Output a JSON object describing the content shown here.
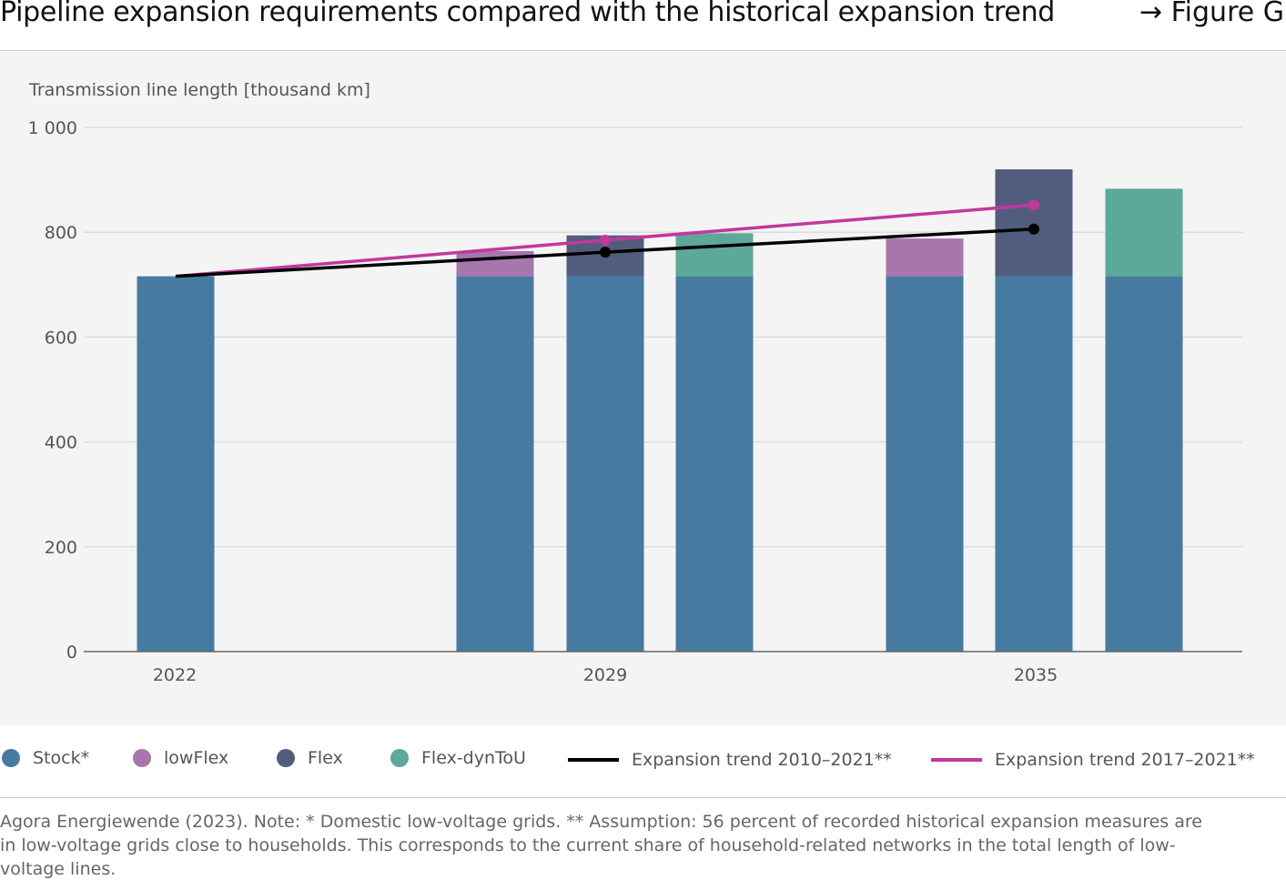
{
  "header": {
    "title": "Pipeline expansion requirements compared with the historical expansion trend",
    "figure_ref": "→ Figure G"
  },
  "chart_data": {
    "type": "bar",
    "stacked": true,
    "ylabel": "Transmission line length [thousand km]",
    "ylim": [
      0,
      1000
    ],
    "yticks": [
      0,
      200,
      400,
      600,
      800,
      1000
    ],
    "ytick_labels": [
      "0",
      "200",
      "400",
      "600",
      "800",
      "1 000"
    ],
    "xgroups": [
      "2022",
      "2029",
      "2035"
    ],
    "bars": [
      {
        "group": "2022",
        "segments": [
          {
            "series": "Stock*",
            "value": 716
          }
        ]
      },
      {
        "group": "2029",
        "segments": [
          {
            "series": "Stock*",
            "value": 716
          },
          {
            "series": "lowFlex",
            "value": 48
          }
        ]
      },
      {
        "group": "2029",
        "segments": [
          {
            "series": "Stock*",
            "value": 716
          },
          {
            "series": "Flex",
            "value": 78
          }
        ]
      },
      {
        "group": "2029",
        "segments": [
          {
            "series": "Stock*",
            "value": 716
          },
          {
            "series": "Flex-dynToU",
            "value": 82
          }
        ]
      },
      {
        "group": "2035",
        "segments": [
          {
            "series": "Stock*",
            "value": 716
          },
          {
            "series": "lowFlex",
            "value": 72
          }
        ]
      },
      {
        "group": "2035",
        "segments": [
          {
            "series": "Stock*",
            "value": 716
          },
          {
            "series": "Flex",
            "value": 204
          }
        ]
      },
      {
        "group": "2035",
        "segments": [
          {
            "series": "Stock*",
            "value": 716
          },
          {
            "series": "Flex-dynToU",
            "value": 167
          }
        ]
      }
    ],
    "lines": [
      {
        "name": "Expansion trend 2010–2021**",
        "color": "#000000",
        "points": [
          {
            "x": "2022",
            "y": 716
          },
          {
            "x": "2029",
            "y": 762
          },
          {
            "x": "2035",
            "y": 806
          }
        ]
      },
      {
        "name": "Expansion trend 2017–2021**",
        "color": "#c0399d",
        "points": [
          {
            "x": "2022",
            "y": 716
          },
          {
            "x": "2029",
            "y": 785
          },
          {
            "x": "2035",
            "y": 852
          }
        ]
      }
    ],
    "colors": {
      "Stock*": "#467aa1",
      "lowFlex": "#a676ad",
      "Flex": "#525d7d",
      "Flex-dynToU": "#5ca899"
    },
    "grid": true,
    "legend_position": "bottom"
  },
  "legend": {
    "items": [
      {
        "label": "Stock*",
        "kind": "dot",
        "color": "#467aa1"
      },
      {
        "label": "lowFlex",
        "kind": "dot",
        "color": "#a676ad"
      },
      {
        "label": "Flex",
        "kind": "dot",
        "color": "#525d7d"
      },
      {
        "label": "Flex-dynToU",
        "kind": "dot",
        "color": "#5ca899"
      },
      {
        "label": "Expansion trend 2010–2021**",
        "kind": "line",
        "color": "#000000"
      },
      {
        "label": "Expansion trend 2017–2021**",
        "kind": "line",
        "color": "#c0399d"
      }
    ]
  },
  "footnote": "Agora Energiewende (2023). Note: * Domestic low-voltage grids. ** Assumption: 56 percent of recorded historical expansion measures are in low-voltage grids close to households. This corresponds to the current share of household-related networks in the total length of low-voltage lines."
}
